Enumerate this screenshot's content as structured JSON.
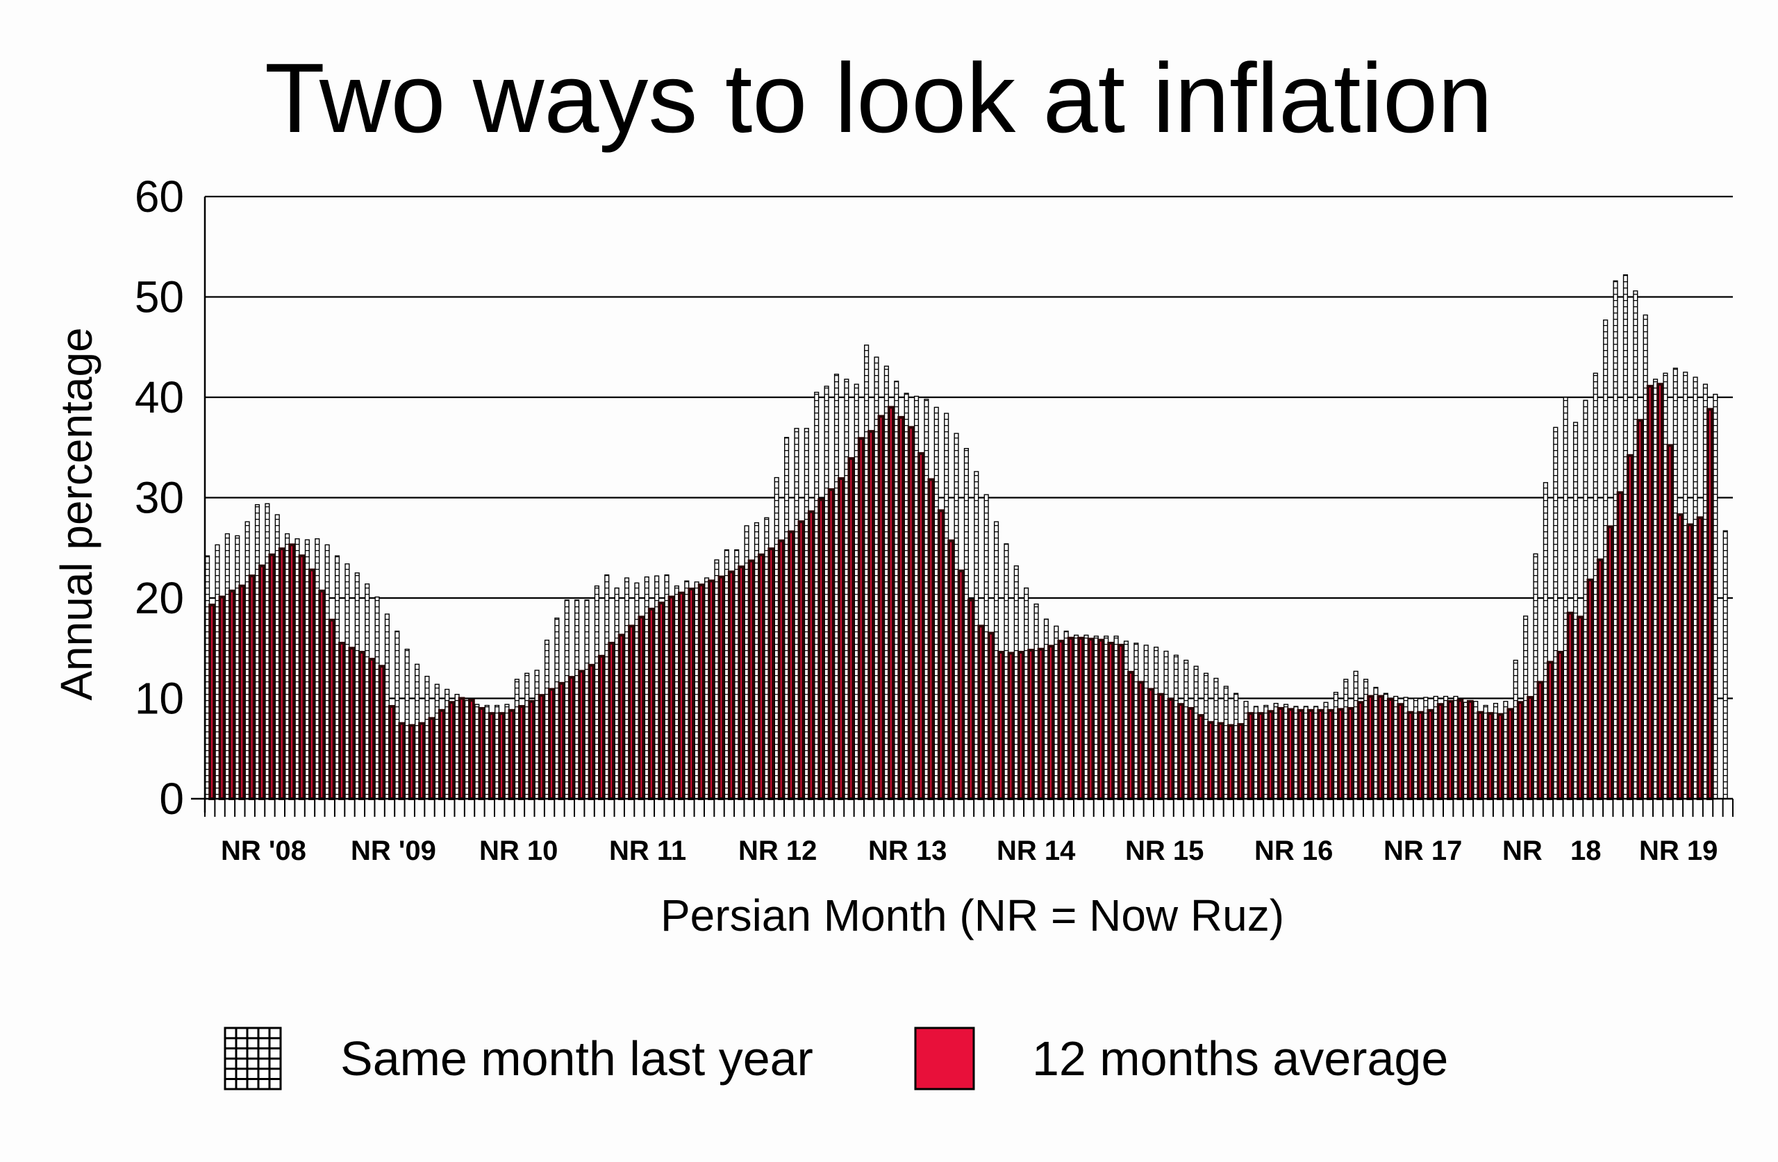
{
  "chart_data": {
    "type": "bar",
    "title": "Two ways to look at inflation",
    "xlabel": "Persian Month (NR = Now Ruz)",
    "ylabel": "Annual percentage",
    "ylim": [
      0,
      60
    ],
    "yticks": [
      "0",
      "10",
      "20",
      "30",
      "40",
      "50",
      "60"
    ],
    "grid": true,
    "legend_position": "bottom",
    "year_labels": [
      "NR '08",
      "NR '09",
      "NR 10",
      "NR 11",
      "NR 12",
      "NR 13",
      "NR 14",
      "NR 15",
      "NR 16",
      "NR 17",
      "NR",
      "18",
      "NR 19"
    ],
    "months_start": "NR '08",
    "series": [
      {
        "name": "Same month last year",
        "fill": "hatched",
        "values": [
          24.2,
          25.3,
          26.4,
          26.2,
          27.6,
          29.3,
          29.4,
          28.3,
          26.4,
          25.9,
          25.8,
          25.9,
          25.3,
          24.2,
          23.4,
          22.5,
          21.4,
          20.1,
          18.4,
          16.7,
          14.9,
          13.4,
          12.2,
          11.4,
          10.9,
          10.4,
          9.8,
          9.4,
          9.3,
          9.3,
          9.4,
          11.9,
          12.5,
          12.8,
          15.8,
          18.0,
          19.8,
          19.8,
          19.8,
          21.2,
          22.3,
          21.0,
          22.0,
          21.5,
          22.1,
          22.2,
          22.3,
          21.2,
          21.7,
          21.6,
          22.0,
          23.8,
          24.8,
          24.8,
          27.2,
          27.5,
          28.0,
          32.0,
          36.0,
          36.9,
          36.9,
          40.5,
          41.1,
          42.3,
          41.8,
          41.3,
          45.2,
          44.0,
          43.1,
          41.6,
          40.4,
          40.1,
          39.8,
          39.0,
          38.4,
          36.4,
          34.9,
          32.6,
          30.3,
          27.6,
          25.4,
          23.2,
          21.0,
          19.4,
          17.9,
          17.2,
          16.7,
          16.3,
          16.3,
          16.2,
          16.2,
          16.2,
          15.7,
          15.5,
          15.3,
          15.1,
          14.7,
          14.3,
          13.8,
          13.2,
          12.5,
          12.0,
          11.2,
          10.5,
          9.7,
          9.2,
          9.3,
          9.5,
          9.4,
          9.2,
          9.2,
          9.2,
          9.6,
          10.6,
          11.9,
          12.7,
          11.9,
          11.1,
          10.5,
          10.2,
          10.1,
          10.0,
          10.1,
          10.2,
          10.2,
          10.2,
          9.6,
          9.7,
          9.3,
          9.5,
          9.7,
          13.8,
          18.2,
          24.4,
          31.5,
          37.0,
          40.0,
          37.5,
          39.7,
          42.4,
          47.7,
          51.6,
          52.2,
          50.6,
          48.2,
          41.8,
          42.4,
          42.9,
          42.5,
          42.0,
          41.3,
          40.3,
          26.7
        ],
        "color": "#ffffff"
      },
      {
        "name": "12 months average",
        "fill": "solid",
        "values": [
          19.3,
          20.1,
          20.7,
          21.2,
          22.2,
          23.2,
          24.3,
          24.9,
          25.3,
          24.2,
          22.8,
          20.7,
          17.8,
          15.5,
          15.0,
          14.6,
          13.9,
          13.2,
          9.2,
          7.5,
          7.3,
          7.5,
          8.0,
          8.8,
          9.6,
          10.0,
          9.8,
          9.0,
          8.5,
          8.5,
          8.8,
          9.2,
          9.7,
          10.3,
          10.9,
          11.5,
          12.1,
          12.7,
          13.3,
          14.2,
          15.5,
          16.3,
          17.2,
          18.1,
          18.9,
          19.5,
          20.1,
          20.5,
          20.9,
          21.3,
          21.7,
          22.1,
          22.6,
          23.1,
          23.7,
          24.3,
          24.9,
          25.7,
          26.6,
          27.6,
          28.6,
          29.8,
          30.8,
          31.9,
          33.9,
          35.9,
          36.6,
          38.1,
          39.0,
          38.0,
          37.0,
          34.4,
          31.8,
          28.7,
          25.7,
          22.7,
          19.8,
          17.2,
          16.5,
          14.6,
          14.5,
          14.6,
          14.8,
          14.9,
          15.2,
          15.7,
          16.0,
          16.0,
          15.9,
          15.8,
          15.5,
          15.3,
          12.6,
          11.6,
          10.9,
          10.4,
          9.9,
          9.4,
          9.0,
          8.3,
          7.6,
          7.5,
          7.3,
          7.4,
          8.5,
          8.5,
          8.7,
          9.0,
          8.9,
          8.8,
          8.8,
          8.8,
          8.8,
          8.9,
          9.0,
          9.6,
          10.2,
          10.2,
          9.9,
          9.4,
          8.6,
          8.6,
          8.8,
          9.4,
          9.7,
          9.8,
          9.7,
          8.6,
          8.5,
          8.4,
          8.9,
          9.6,
          10.1,
          11.6,
          13.6,
          14.6,
          18.5,
          18.1,
          21.8,
          23.8,
          27.1,
          30.5,
          34.2,
          37.7,
          41.1,
          41.3,
          35.2,
          28.3,
          27.3,
          28.0,
          38.8
        ],
        "color": "#e8103a"
      }
    ]
  }
}
